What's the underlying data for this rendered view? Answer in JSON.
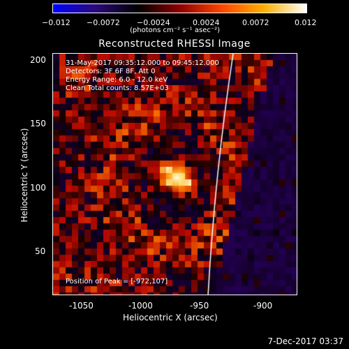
{
  "colorbar": {
    "tick_labels": [
      "−0.012",
      "−0.0072",
      "−0.0024",
      "0.0024",
      "0.0072",
      "0.012"
    ],
    "units": "(photons cm⁻² s⁻¹ asec⁻²)",
    "colors": [
      "#0000ff",
      "#2a0a7a",
      "#000000",
      "#8b0000",
      "#ff4500",
      "#ffb000",
      "#ffffff"
    ]
  },
  "title": "Reconstructed RHESSI Image",
  "info": {
    "line1": "31-May-2017 09:35:12.000 to 09:45:12.000",
    "line2": "Detectors: 3F 6F 8F, Att 0",
    "line3": "Energy Range: 6.0 - 12.0 keV",
    "line4": "Clean     Total counts: 8.57E+03",
    "peak": "Position of Peak = [-972,107]"
  },
  "axes": {
    "xlabel": "Heliocentric X (arcsec)",
    "ylabel": "Heliocentric Y (arcsec)",
    "xticks": [
      "-1050",
      "-1000",
      "-950",
      "-900"
    ],
    "yticks": [
      "50",
      "100",
      "150",
      "200"
    ]
  },
  "timestamp": "7-Dec-2017 03:37",
  "image": {
    "peak_position": [
      -972,
      107
    ],
    "limb_color": "#ffffff"
  }
}
